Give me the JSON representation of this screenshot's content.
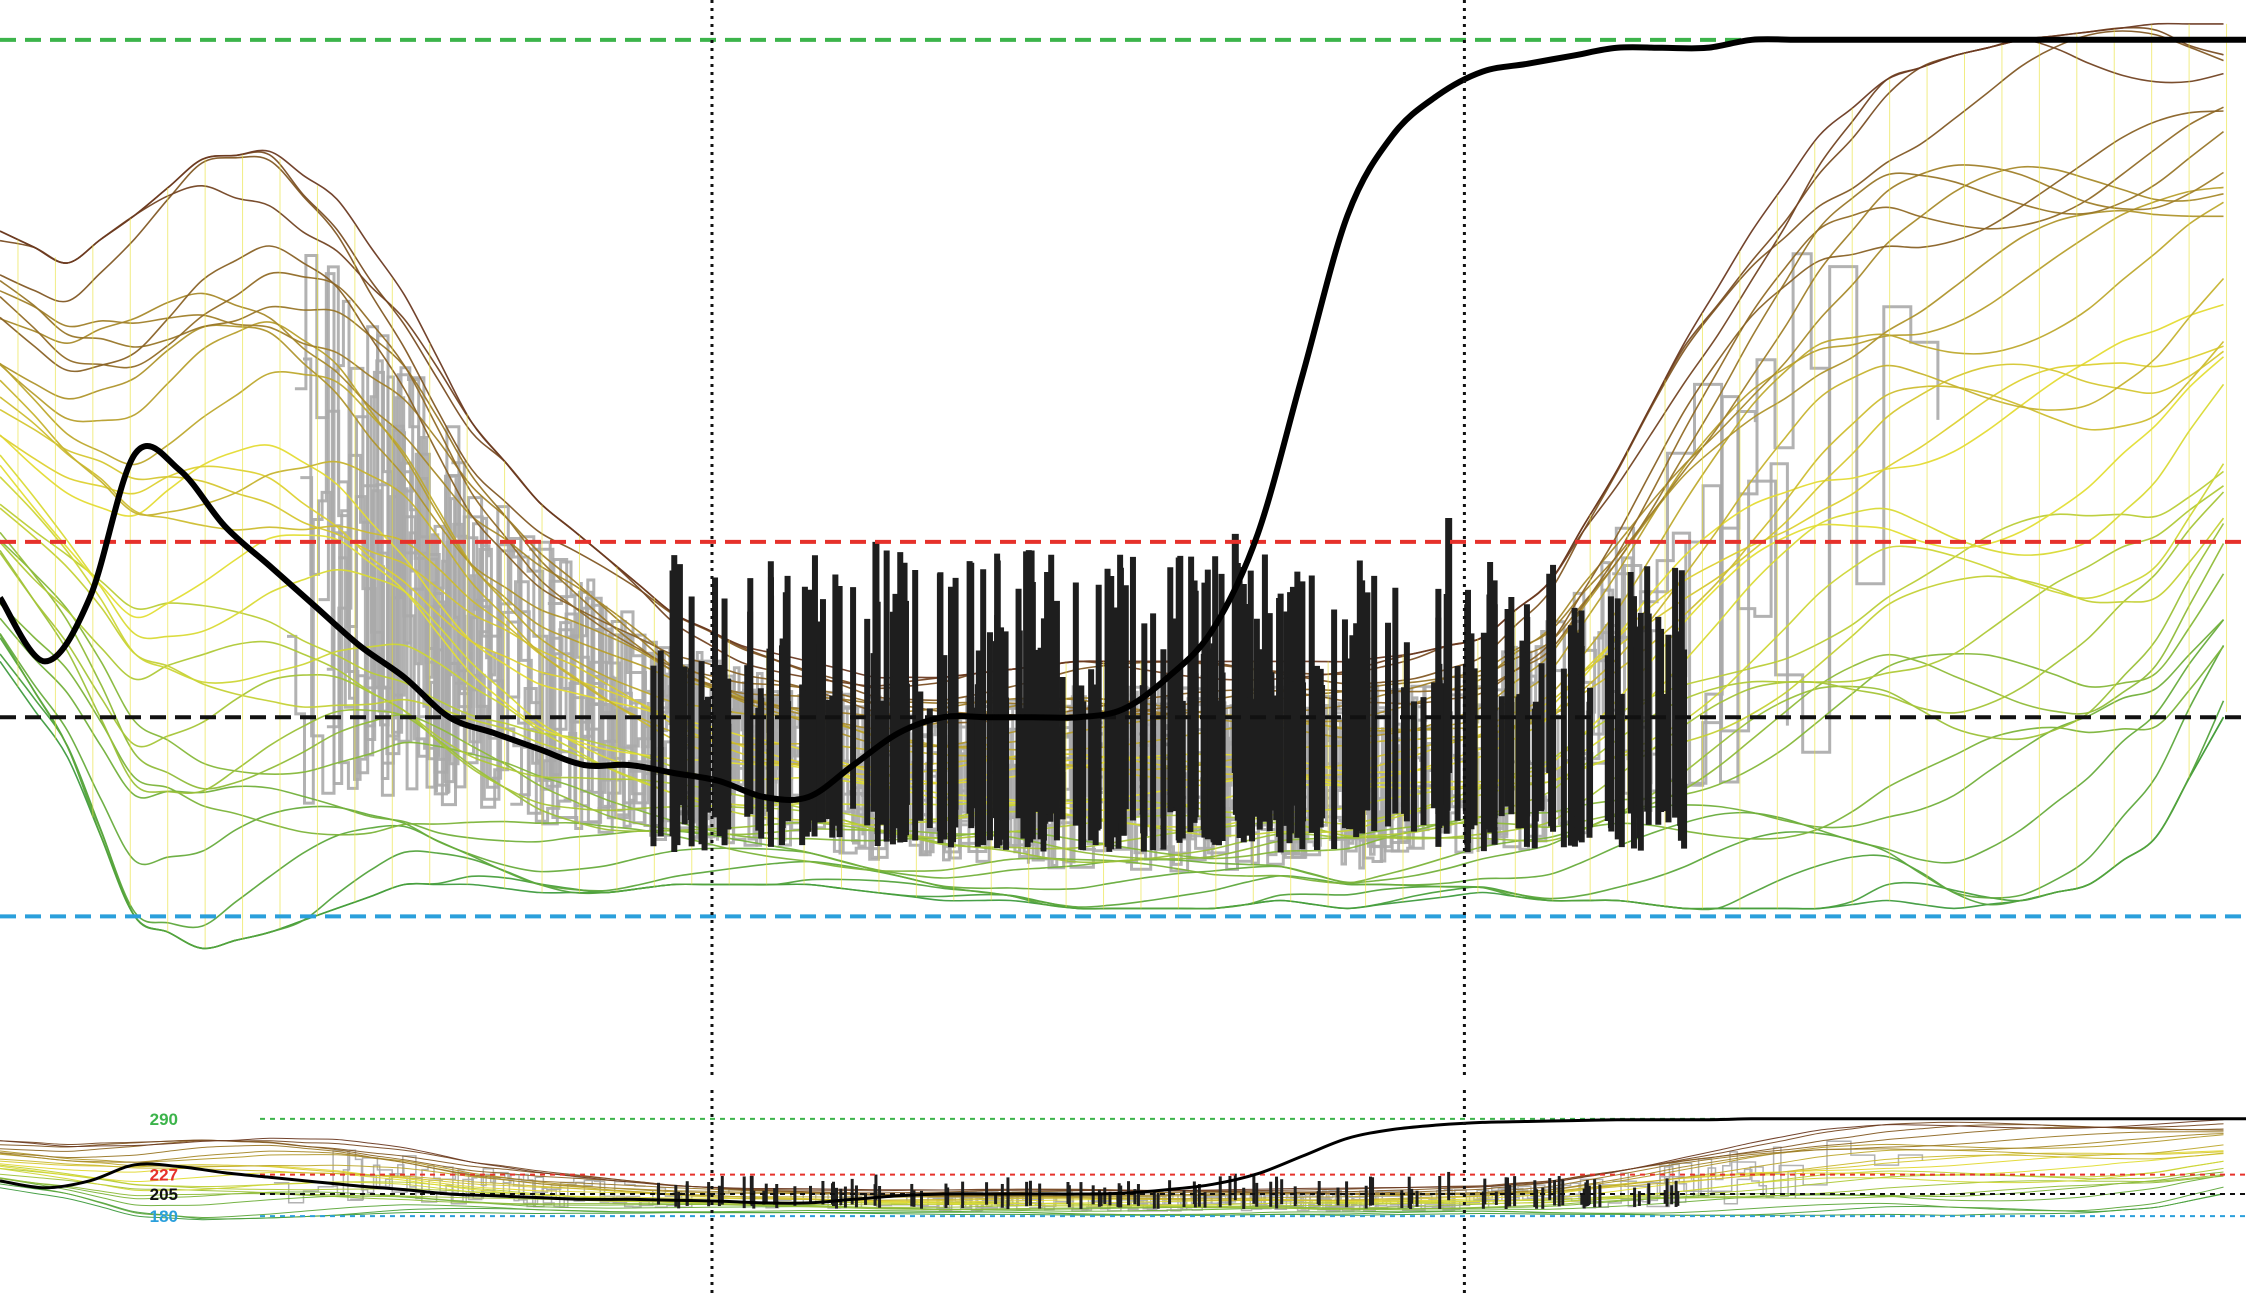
{
  "chart_data": {
    "type": "line",
    "title": "",
    "xlabel": "",
    "ylabel": "",
    "xlim": [
      0,
      100
    ],
    "ylim": [
      167,
      295
    ],
    "grid": false,
    "vertical_markers": [
      31.7,
      65.2
    ],
    "reference_lines": [
      {
        "label": "290",
        "value": 290,
        "color": "#3cb44b"
      },
      {
        "label": "227",
        "value": 227,
        "color": "#e6312b"
      },
      {
        "label": "205",
        "value": 205,
        "color": "#111111"
      },
      {
        "label": "180",
        "value": 180,
        "color": "#2a9fdb"
      }
    ],
    "palette": {
      "low": "#3e9b3e",
      "mid": "#e8e034",
      "high": "#6b3a22",
      "observed": "#aaaaaa",
      "active": "#1e1e1e",
      "mean": "#000000"
    },
    "mean_series": {
      "name": "",
      "x": [
        0,
        2,
        4,
        6,
        8,
        10,
        12,
        14,
        16,
        18,
        20,
        22,
        24,
        26,
        28,
        30,
        32,
        34,
        36,
        38,
        40,
        42,
        44,
        46,
        48,
        50,
        52,
        54,
        56,
        58,
        60,
        62,
        64,
        66,
        68,
        70,
        72,
        74,
        76,
        78,
        80,
        82,
        84,
        86,
        88,
        90,
        92,
        94,
        96,
        98,
        100
      ],
      "y": [
        220,
        212,
        220,
        238,
        236,
        229,
        224,
        219,
        214,
        210,
        205,
        203,
        201,
        199,
        199,
        198,
        197,
        195,
        195,
        199,
        203,
        205,
        205,
        205,
        205,
        206,
        210,
        216,
        228,
        248,
        268,
        278,
        283,
        286,
        287,
        288,
        289,
        289,
        289,
        290,
        290,
        290,
        290,
        290,
        290,
        290,
        290,
        290,
        290,
        290,
        290
      ]
    },
    "envelope": {
      "upper": {
        "x": [
          0,
          3,
          6,
          9,
          12,
          15,
          18,
          21,
          24,
          27,
          30,
          33,
          36,
          39,
          42,
          45,
          48,
          51,
          54,
          57,
          60,
          63,
          66,
          69,
          72,
          75,
          78,
          81,
          84,
          87,
          90,
          93,
          96,
          99,
          100
        ],
        "y": [
          266,
          262,
          268,
          275,
          276,
          270,
          258,
          242,
          232,
          225,
          218,
          214,
          212,
          210,
          210,
          211,
          212,
          212,
          212,
          212,
          212,
          213,
          215,
          222,
          236,
          252,
          266,
          278,
          285,
          288,
          290,
          291,
          292,
          292,
          292
        ]
      },
      "lower": {
        "x": [
          0,
          3,
          6,
          9,
          12,
          15,
          18,
          21,
          24,
          27,
          30,
          33,
          36,
          39,
          42,
          45,
          48,
          51,
          54,
          57,
          60,
          63,
          66,
          69,
          72,
          75,
          78,
          81,
          84,
          87,
          90,
          93,
          96,
          99,
          100
        ],
        "y": [
          212,
          200,
          180,
          176,
          178,
          181,
          184,
          184,
          183,
          183,
          184,
          184,
          184,
          183,
          182,
          182,
          181,
          181,
          181,
          182,
          181,
          182,
          183,
          182,
          182,
          181,
          181,
          181,
          182,
          181,
          182,
          184,
          190,
          205,
          210
        ]
      }
    },
    "observed_band": {
      "x_range": [
        11,
        98
      ],
      "y_range": [
        181,
        284
      ]
    },
    "active_band": {
      "x_range": [
        29,
        75
      ],
      "y_range": [
        188,
        228
      ],
      "peak_values": [
        {
          "x": 39,
          "y": 227
        },
        {
          "x": 55,
          "y": 228
        },
        {
          "x": 64.5,
          "y": 230
        },
        {
          "x": 69,
          "y": 223
        }
      ]
    },
    "inset": {
      "tick_labels": [
        "290",
        "227",
        "205",
        "180"
      ]
    }
  }
}
